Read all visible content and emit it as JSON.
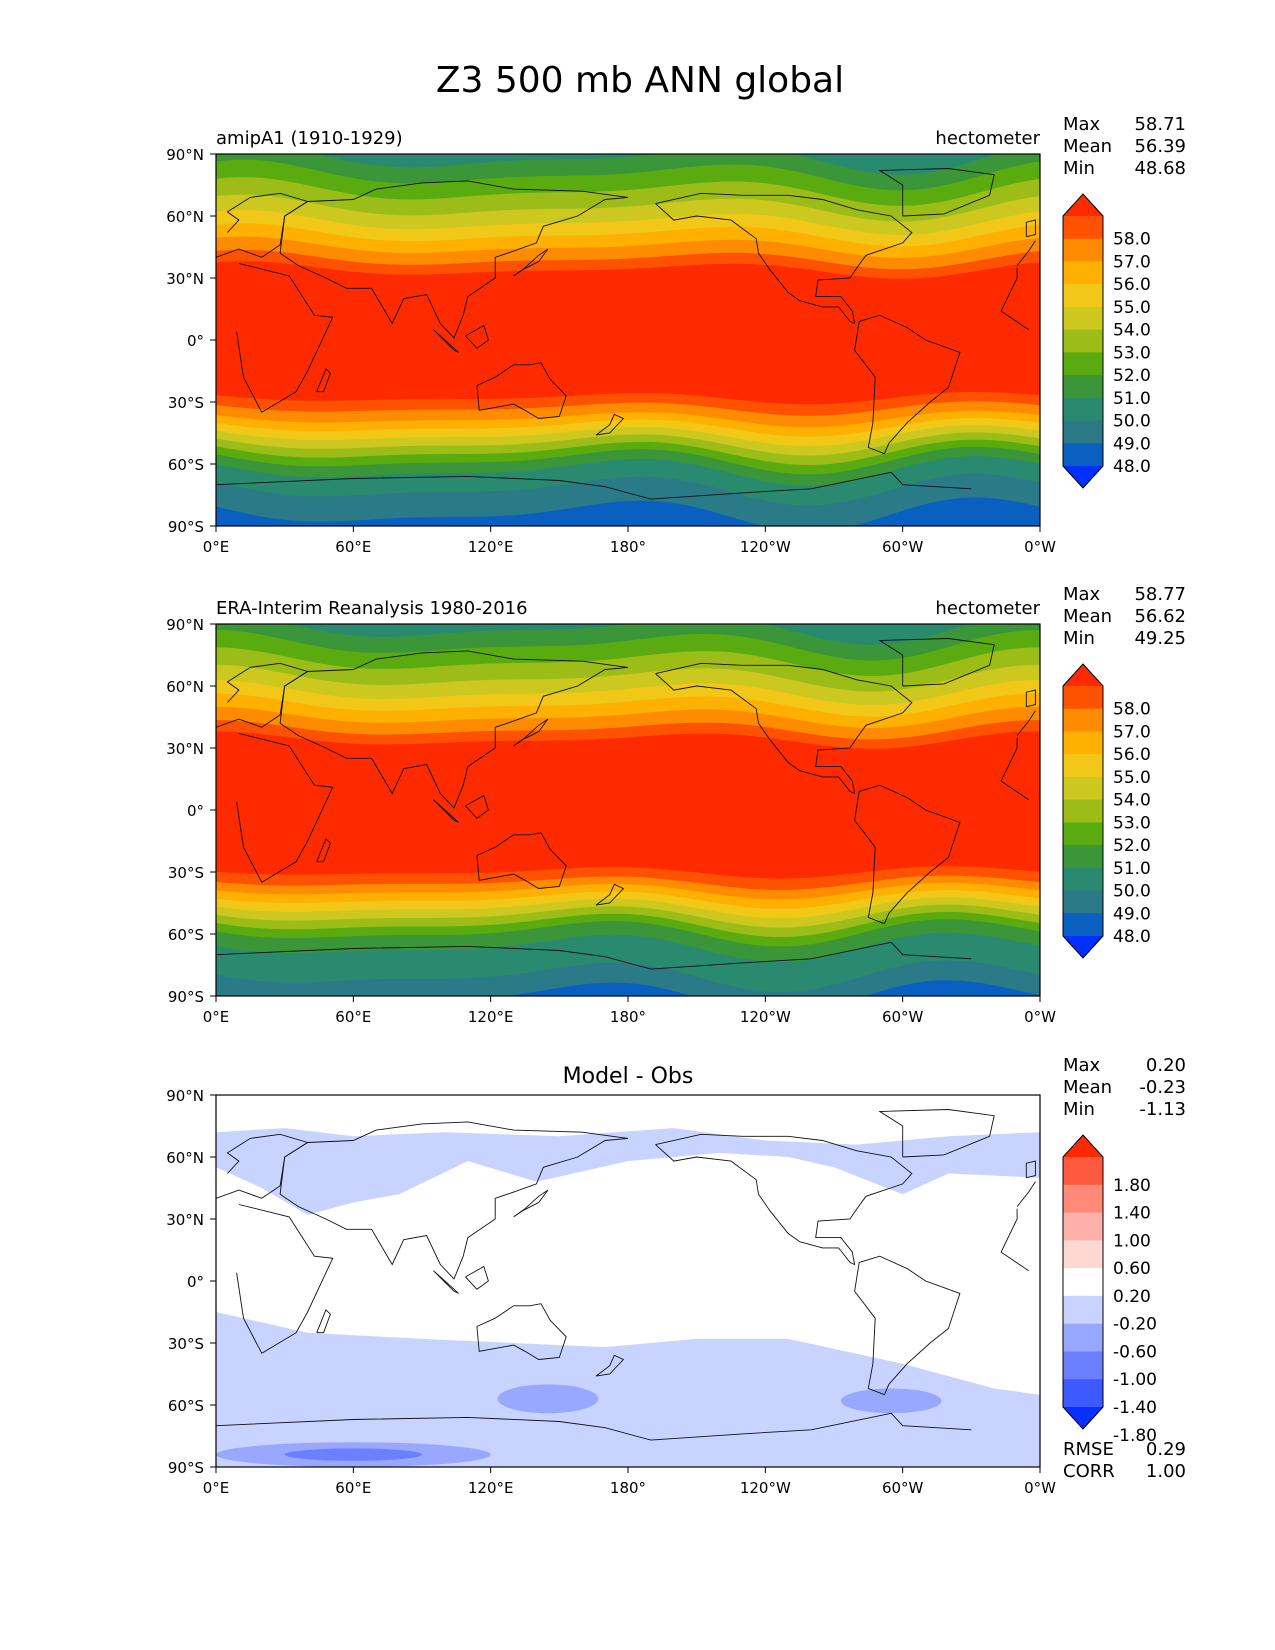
{
  "title": "Z3 500 mb ANN global",
  "lon_ticks": [
    "0°E",
    "60°E",
    "120°E",
    "180°",
    "120°W",
    "60°W",
    "0°W"
  ],
  "lat_ticks": [
    "90°N",
    "60°N",
    "30°N",
    "0°",
    "30°S",
    "60°S",
    "90°S"
  ],
  "chart_data": [
    {
      "type": "heatmap",
      "name": "panel-model",
      "left_title": "amipA1 (1910-1929)",
      "units": "hectometer",
      "stats": [
        {
          "label": "Max",
          "value": "58.71"
        },
        {
          "label": "Mean",
          "value": "56.39"
        },
        {
          "label": "Min",
          "value": "48.68"
        }
      ],
      "levels": [
        "58.0",
        "57.0",
        "56.0",
        "55.0",
        "54.0",
        "53.0",
        "52.0",
        "51.0",
        "50.0",
        "49.0",
        "48.0"
      ],
      "colors": [
        "#ff2a00",
        "#ff5200",
        "#ff8c00",
        "#ffb000",
        "#f2c818",
        "#ccc820",
        "#9cbc18",
        "#5aab10",
        "#3a9638",
        "#2a8a70",
        "#2a7a88",
        "#0a60c0",
        "#0030ff"
      ],
      "band_edges_lat": {
        "north": [
          88,
          80,
          72,
          64,
          57,
          51,
          45,
          39,
          34
        ],
        "south": [
          -28,
          -33,
          -38,
          -42,
          -46,
          -50,
          -54,
          -58,
          -63,
          -72,
          -84
        ]
      }
    },
    {
      "type": "heatmap",
      "name": "panel-obs",
      "left_title": "ERA-Interim Reanalysis 1980-2016",
      "units": "hectometer",
      "stats": [
        {
          "label": "Max",
          "value": "58.77"
        },
        {
          "label": "Mean",
          "value": "56.62"
        },
        {
          "label": "Min",
          "value": "49.25"
        }
      ],
      "levels": [
        "58.0",
        "57.0",
        "56.0",
        "55.0",
        "54.0",
        "53.0",
        "52.0",
        "51.0",
        "50.0",
        "49.0",
        "48.0"
      ],
      "colors": [
        "#ff2a00",
        "#ff5200",
        "#ff8c00",
        "#ffb000",
        "#f2c818",
        "#ccc820",
        "#9cbc18",
        "#5aab10",
        "#3a9638",
        "#2a8a70",
        "#2a7a88",
        "#0a60c0",
        "#0030ff"
      ],
      "band_edges_lat": {
        "north": [
          88,
          80,
          72,
          64,
          57,
          51,
          45,
          39,
          34
        ],
        "south": [
          -30,
          -35,
          -39,
          -43,
          -47,
          -51,
          -55,
          -59,
          -66,
          -80,
          -90
        ]
      }
    },
    {
      "type": "heatmap",
      "name": "panel-diff",
      "center_title": "Model - Obs",
      "units": "",
      "stats": [
        {
          "label": "Max",
          "value": "0.20"
        },
        {
          "label": "Mean",
          "value": "-0.23"
        },
        {
          "label": "Min",
          "value": "-1.13"
        }
      ],
      "levels": [
        "1.80",
        "1.40",
        "1.00",
        "0.60",
        "0.20",
        "-0.20",
        "-0.60",
        "-1.00",
        "-1.40",
        "-1.80"
      ],
      "colors": [
        "#ff2a00",
        "#ff5a40",
        "#ff8a78",
        "#ffb0a8",
        "#ffd8d2",
        "#ffffff",
        "#c8d4ff",
        "#98a8ff",
        "#6a80ff",
        "#3e5aff",
        "#0a30ff"
      ],
      "extra_stats": [
        {
          "label": "RMSE",
          "value": "0.29"
        },
        {
          "label": "CORR",
          "value": "1.00"
        }
      ]
    }
  ]
}
